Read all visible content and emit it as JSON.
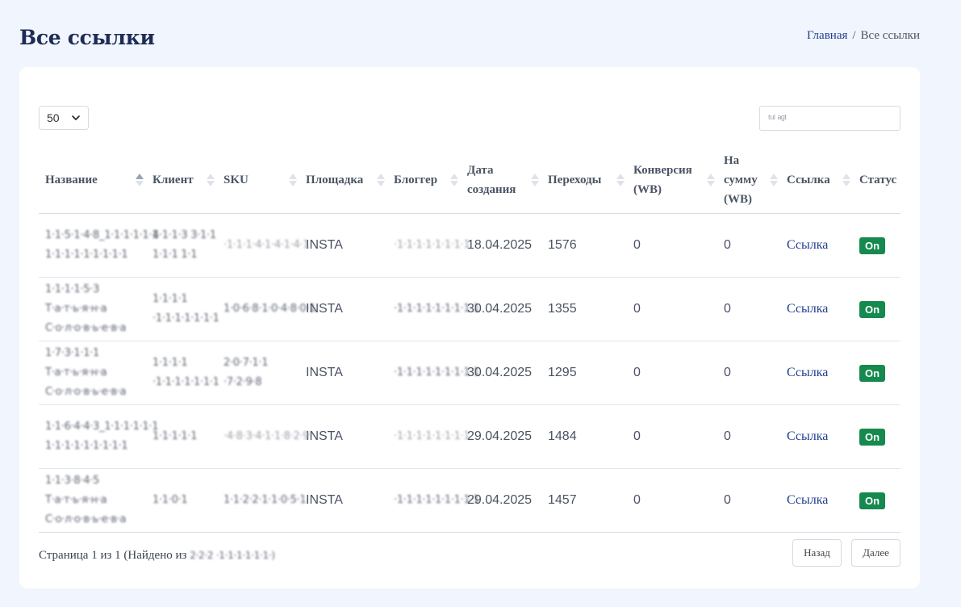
{
  "page": {
    "title": "Все ссылки"
  },
  "breadcrumb": {
    "home": "Главная",
    "separator": "/",
    "current": "Все ссылки"
  },
  "controls": {
    "page_size": "50",
    "search_value": "ᵗᵘˡ ᵃᵍᵗ"
  },
  "table": {
    "headers": {
      "name": "Название",
      "client": "Клиент",
      "sku": "SKU",
      "platform": "Площадка",
      "blogger": "Блоггер",
      "date": "Дата создания",
      "clicks": "Переходы",
      "conversion": "Конверсия (WB)",
      "amount": "На сумму (WB)",
      "link": "Ссылка",
      "status": "Статус"
    },
    "rows": [
      {
        "name": "1·1·5·1·4·8_1·1·1·1·1·1 1·1·1·1·1·1·1·1·1",
        "client": "4·1·1·3 3·1·1 1·1·1 1·1",
        "sku": "·1·1·1·4·1·4·1·4·1",
        "platform": "INSTA",
        "blogger": "·1·1·1·1·1·1·1·1",
        "date": "18.04.2025",
        "clicks": "1576",
        "conversion": "0",
        "amount": "0",
        "link": "Ссылка",
        "status": "On"
      },
      {
        "name": "1·1·1·1·5·3 Т·а·т·ь·я·н·а С·о·л·о·в·ь·е·в·а",
        "client": "1·1·1·1 ·1·1·1·1·1·1·1",
        "sku": "1·0·6·8·1·0·4·8·0·1",
        "platform": "INSTA",
        "blogger": "·1·1·1·1·1·1·1·1·1",
        "date": "30.04.2025",
        "clicks": "1355",
        "conversion": "0",
        "amount": "0",
        "link": "Ссылка",
        "status": "On"
      },
      {
        "name": "1·7·3·1·1·1 Т·а·т·ь·я·н·а С·о·л·о·в·ь·е·в·а",
        "client": "1·1·1·1 ·1·1·1·1·1·1·1",
        "sku": "2·0·7·1·1 ·7·2·9·8",
        "platform": "INSTA",
        "blogger": "·1·1·1·1·1·1·1·1·1",
        "date": "30.04.2025",
        "clicks": "1295",
        "conversion": "0",
        "amount": "0",
        "link": "Ссылка",
        "status": "On"
      },
      {
        "name": "1·1·6·4·4·3_1·1·1·1·1·1 1·1·1·1·1·1·1·1·1",
        "client": "1·1·1·1·1",
        "sku": "·4·8·3·4·1·1·8·2·9",
        "platform": "INSTA",
        "blogger": "·1·1·1·1·1·1·1·1",
        "date": "29.04.2025",
        "clicks": "1484",
        "conversion": "0",
        "amount": "0",
        "link": "Ссылка",
        "status": "On"
      },
      {
        "name": "1·1·3·8·4·5 Т·а·т·ь·я·н·а С·о·л·о·в·ь·е·в·а",
        "client": "1·1·0·1",
        "sku": "1·1·2·2·1·1·0·5·1",
        "platform": "INSTA",
        "blogger": "·1·1·1·1·1·1·1·1·1",
        "date": "29.04.2025",
        "clicks": "1457",
        "conversion": "0",
        "amount": "0",
        "link": "Ссылка",
        "status": "On"
      }
    ]
  },
  "footer": {
    "info_prefix": "Страница 1 из 1 (Найдено из",
    "info_count": "2·2·2 ·1·1·1·1·1·1·)",
    "prev_label": "Назад",
    "next_label": "Далее"
  }
}
